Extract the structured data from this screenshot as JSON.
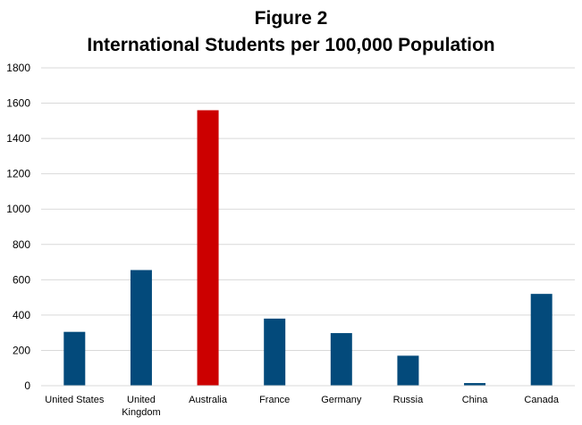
{
  "chart_data": {
    "type": "bar",
    "title": "Figure 2",
    "subtitle": "International Students per 100,000 Population",
    "xlabel": "",
    "ylabel": "",
    "ylim": [
      0,
      1800
    ],
    "yticks": [
      0,
      200,
      400,
      600,
      800,
      1000,
      1200,
      1400,
      1600,
      1800
    ],
    "grid": true,
    "legend": "none",
    "categories": [
      "United States",
      "United\nKingdom",
      "Australia",
      "France",
      "Germany",
      "Russia",
      "China",
      "Canada"
    ],
    "values": [
      305,
      655,
      1560,
      380,
      298,
      170,
      15,
      520
    ],
    "colors": [
      "#034a7b",
      "#034a7b",
      "#cc0000",
      "#034a7b",
      "#034a7b",
      "#034a7b",
      "#034a7b",
      "#034a7b"
    ],
    "gridline_color": "#d9d9d9"
  }
}
